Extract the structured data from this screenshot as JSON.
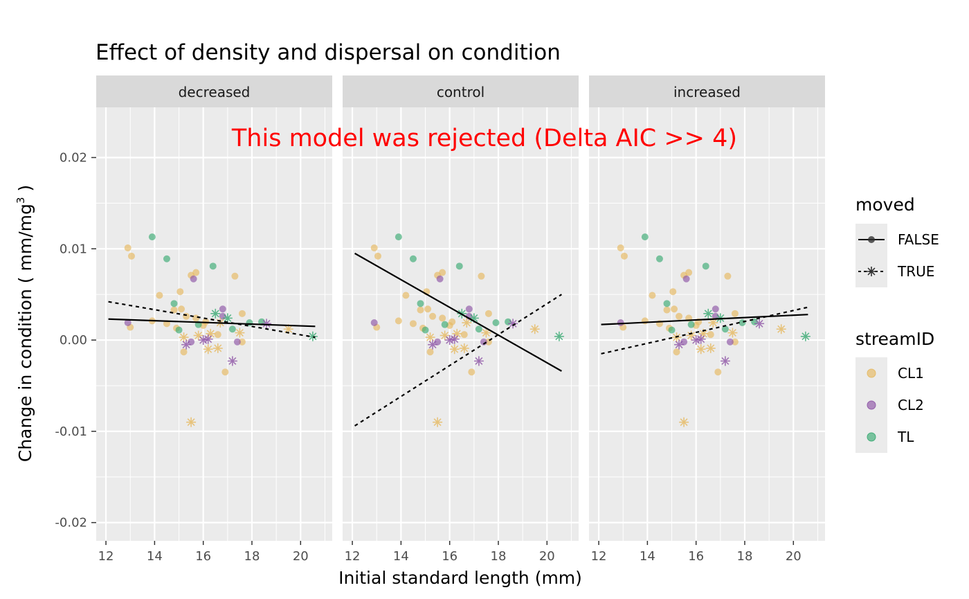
{
  "chart_data": {
    "type": "scatter",
    "title": "Effect of density and dispersal on condition",
    "xlabel": "Initial standard length (mm)",
    "ylabel": "Change in condition ( mm/mg",
    "ylabel_superscript": "3",
    "ylabel_close": " )",
    "annotation": "This  model  was  rejected (Delta AIC >> 4)",
    "xlim": [
      11.6,
      21.3
    ],
    "ylim": [
      -0.022,
      0.0255
    ],
    "x_ticks": [
      12,
      14,
      16,
      18,
      20
    ],
    "y_ticks": [
      -0.02,
      -0.01,
      0.0,
      0.01,
      0.02
    ],
    "y_tick_labels": [
      "-0.02",
      "-0.01",
      "0.00",
      "0.01",
      "0.02"
    ],
    "facets": [
      {
        "name": "decreased",
        "lines": [
          {
            "moved": "FALSE",
            "x": [
              12.1,
              20.6
            ],
            "y": [
              0.0023,
              0.0015
            ]
          },
          {
            "moved": "TRUE",
            "x": [
              12.1,
              20.6
            ],
            "y": [
              0.0042,
              0.0003
            ]
          }
        ]
      },
      {
        "name": "control",
        "lines": [
          {
            "moved": "FALSE",
            "x": [
              12.1,
              20.6
            ],
            "y": [
              0.0095,
              -0.0034
            ]
          },
          {
            "moved": "TRUE",
            "x": [
              12.1,
              20.6
            ],
            "y": [
              -0.0094,
              0.005
            ]
          }
        ]
      },
      {
        "name": "increased",
        "lines": [
          {
            "moved": "FALSE",
            "x": [
              12.1,
              20.6
            ],
            "y": [
              0.0017,
              0.0028
            ]
          },
          {
            "moved": "TRUE",
            "x": [
              12.1,
              20.6
            ],
            "y": [
              -0.0015,
              0.0036
            ]
          }
        ]
      }
    ],
    "points": [
      {
        "stream": "CL1",
        "moved": "FALSE",
        "x": 12.9,
        "y": 0.0101
      },
      {
        "stream": "CL1",
        "moved": "FALSE",
        "x": 13.05,
        "y": 0.0092
      },
      {
        "stream": "CL1",
        "moved": "FALSE",
        "x": 13.0,
        "y": 0.0014
      },
      {
        "stream": "CL1",
        "moved": "FALSE",
        "x": 13.9,
        "y": 0.0021
      },
      {
        "stream": "CL1",
        "moved": "FALSE",
        "x": 14.2,
        "y": 0.0049
      },
      {
        "stream": "CL1",
        "moved": "FALSE",
        "x": 14.5,
        "y": 0.0018
      },
      {
        "stream": "CL1",
        "moved": "FALSE",
        "x": 14.8,
        "y": 0.0033
      },
      {
        "stream": "CL1",
        "moved": "FALSE",
        "x": 14.9,
        "y": 0.0013
      },
      {
        "stream": "CL1",
        "moved": "FALSE",
        "x": 15.05,
        "y": 0.0053
      },
      {
        "stream": "CL1",
        "moved": "FALSE",
        "x": 15.1,
        "y": 0.0034
      },
      {
        "stream": "CL1",
        "moved": "FALSE",
        "x": 15.2,
        "y": -0.0013
      },
      {
        "stream": "CL1",
        "moved": "FALSE",
        "x": 15.3,
        "y": 0.0026
      },
      {
        "stream": "CL1",
        "moved": "FALSE",
        "x": 15.5,
        "y": 0.0071
      },
      {
        "stream": "CL1",
        "moved": "FALSE",
        "x": 15.7,
        "y": 0.0074
      },
      {
        "stream": "CL1",
        "moved": "FALSE",
        "x": 15.7,
        "y": 0.0024
      },
      {
        "stream": "CL1",
        "moved": "FALSE",
        "x": 16.0,
        "y": 0.0016
      },
      {
        "stream": "CL1",
        "moved": "FALSE",
        "x": 16.1,
        "y": 0.002
      },
      {
        "stream": "CL1",
        "moved": "FALSE",
        "x": 16.6,
        "y": 0.0006
      },
      {
        "stream": "CL1",
        "moved": "FALSE",
        "x": 16.9,
        "y": -0.0035
      },
      {
        "stream": "CL1",
        "moved": "FALSE",
        "x": 17.3,
        "y": 0.007
      },
      {
        "stream": "CL1",
        "moved": "FALSE",
        "x": 17.6,
        "y": 0.0029
      },
      {
        "stream": "CL1",
        "moved": "FALSE",
        "x": 17.6,
        "y": -0.0002
      },
      {
        "stream": "CL2",
        "moved": "FALSE",
        "x": 12.9,
        "y": 0.0019
      },
      {
        "stream": "CL2",
        "moved": "FALSE",
        "x": 15.6,
        "y": 0.0067
      },
      {
        "stream": "CL2",
        "moved": "FALSE",
        "x": 15.5,
        "y": -0.0002
      },
      {
        "stream": "CL2",
        "moved": "FALSE",
        "x": 16.8,
        "y": 0.0034
      },
      {
        "stream": "CL2",
        "moved": "FALSE",
        "x": 16.8,
        "y": 0.0026
      },
      {
        "stream": "CL2",
        "moved": "FALSE",
        "x": 17.4,
        "y": -0.0002
      },
      {
        "stream": "TL",
        "moved": "FALSE",
        "x": 13.9,
        "y": 0.0113
      },
      {
        "stream": "TL",
        "moved": "FALSE",
        "x": 14.5,
        "y": 0.0089
      },
      {
        "stream": "TL",
        "moved": "FALSE",
        "x": 14.8,
        "y": 0.004
      },
      {
        "stream": "TL",
        "moved": "FALSE",
        "x": 15.0,
        "y": 0.0011
      },
      {
        "stream": "TL",
        "moved": "FALSE",
        "x": 16.4,
        "y": 0.0081
      },
      {
        "stream": "TL",
        "moved": "FALSE",
        "x": 15.8,
        "y": 0.0017
      },
      {
        "stream": "TL",
        "moved": "FALSE",
        "x": 17.9,
        "y": 0.0019
      },
      {
        "stream": "TL",
        "moved": "FALSE",
        "x": 17.2,
        "y": 0.0012
      },
      {
        "stream": "TL",
        "moved": "FALSE",
        "x": 18.4,
        "y": 0.002
      },
      {
        "stream": "CL1",
        "moved": "TRUE",
        "x": 15.5,
        "y": -0.009
      },
      {
        "stream": "CL1",
        "moved": "TRUE",
        "x": 15.2,
        "y": 0.0003
      },
      {
        "stream": "CL1",
        "moved": "TRUE",
        "x": 15.8,
        "y": 0.0005
      },
      {
        "stream": "CL1",
        "moved": "TRUE",
        "x": 16.2,
        "y": -0.001
      },
      {
        "stream": "CL1",
        "moved": "TRUE",
        "x": 16.6,
        "y": -0.0009
      },
      {
        "stream": "CL1",
        "moved": "TRUE",
        "x": 16.3,
        "y": 0.0007
      },
      {
        "stream": "CL1",
        "moved": "TRUE",
        "x": 16.7,
        "y": 0.0019
      },
      {
        "stream": "CL1",
        "moved": "TRUE",
        "x": 17.5,
        "y": 0.0008
      },
      {
        "stream": "CL1",
        "moved": "TRUE",
        "x": 19.5,
        "y": 0.0012
      },
      {
        "stream": "CL2",
        "moved": "TRUE",
        "x": 15.3,
        "y": -0.0005
      },
      {
        "stream": "CL2",
        "moved": "TRUE",
        "x": 16.0,
        "y": 0.0
      },
      {
        "stream": "CL2",
        "moved": "TRUE",
        "x": 16.2,
        "y": 0.0001
      },
      {
        "stream": "CL2",
        "moved": "TRUE",
        "x": 17.2,
        "y": -0.0023
      },
      {
        "stream": "CL2",
        "moved": "TRUE",
        "x": 18.6,
        "y": 0.0018
      },
      {
        "stream": "TL",
        "moved": "TRUE",
        "x": 16.5,
        "y": 0.0029
      },
      {
        "stream": "TL",
        "moved": "TRUE",
        "x": 17.0,
        "y": 0.0024
      },
      {
        "stream": "TL",
        "moved": "TRUE",
        "x": 20.5,
        "y": 0.0004
      }
    ],
    "legend": {
      "position": "right",
      "moved": {
        "title": "moved",
        "entries": [
          "FALSE",
          "TRUE"
        ]
      },
      "streamID": {
        "title": "streamID",
        "entries": [
          "CL1",
          "CL2",
          "TL"
        ]
      }
    },
    "colors": {
      "CL1": "#e6b960",
      "CL2": "#8e55a6",
      "TL": "#3aaa73",
      "panel_bg": "#ebebeb",
      "strip_bg": "#d9d9d9",
      "grid": "#ffffff",
      "annotation": "#ff0000"
    },
    "grid": true
  }
}
